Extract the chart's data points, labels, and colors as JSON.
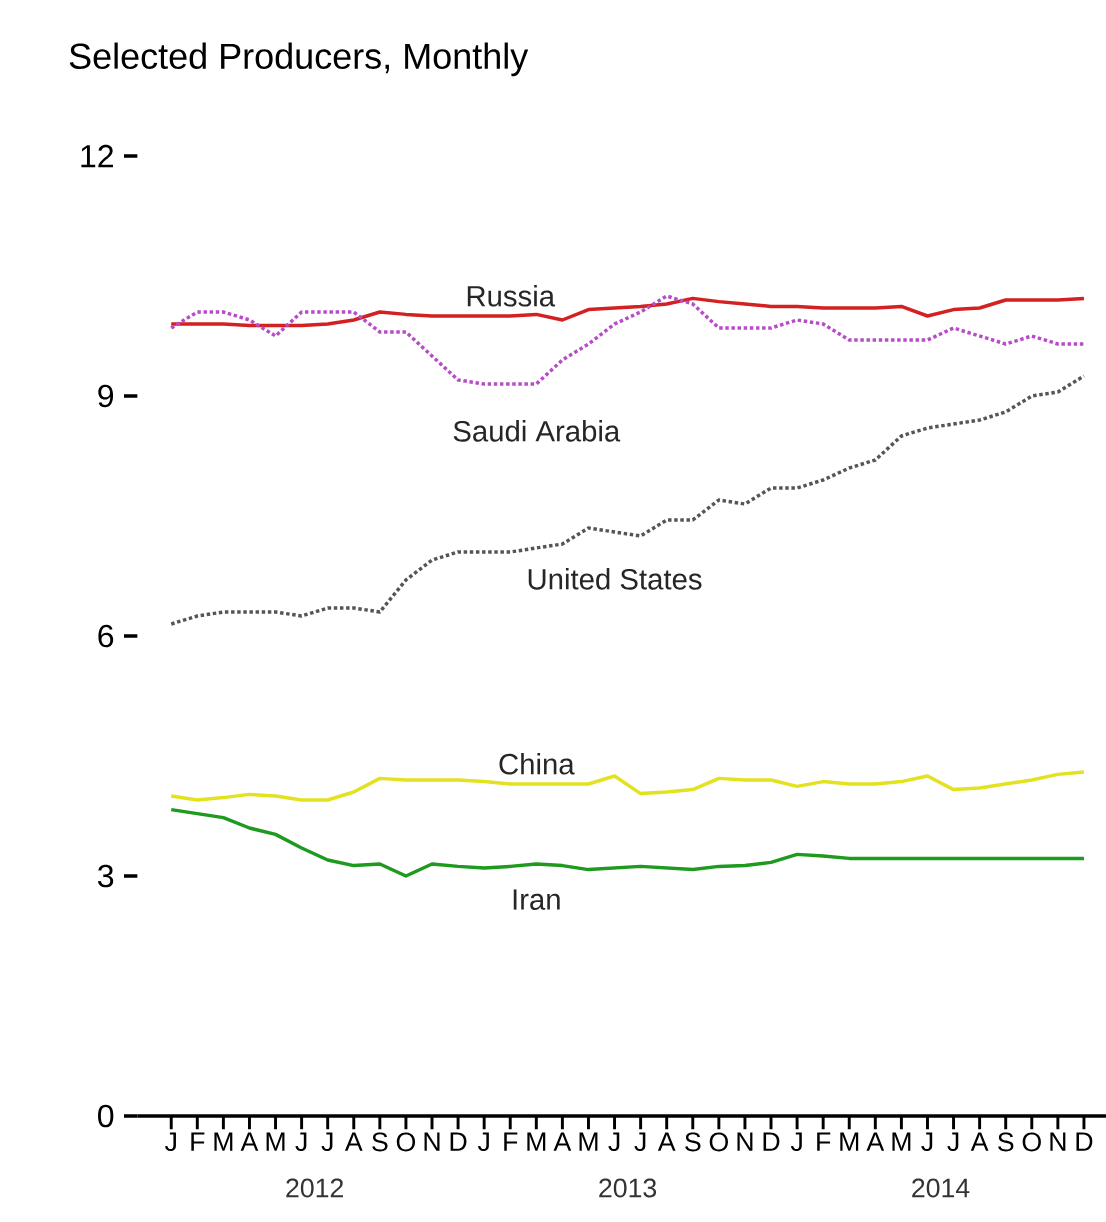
{
  "chart_data": {
    "type": "line",
    "title": "Selected Producers, Monthly",
    "categories": [
      "J",
      "F",
      "M",
      "A",
      "M",
      "J",
      "J",
      "A",
      "S",
      "O",
      "N",
      "D",
      "J",
      "F",
      "M",
      "A",
      "M",
      "J",
      "J",
      "A",
      "S",
      "O",
      "N",
      "D",
      "J",
      "F",
      "M",
      "A",
      "M",
      "J",
      "J",
      "A",
      "S",
      "O",
      "N",
      "D"
    ],
    "annotations": [
      "2012",
      "2013",
      "2014"
    ],
    "ylim": [
      0,
      12
    ],
    "yticks": [
      0,
      3,
      6,
      9,
      12
    ],
    "grid": false,
    "legend": false,
    "series": [
      {
        "name": "Russia",
        "color": "#d42020",
        "line_style": "solid",
        "values": [
          9.9,
          9.9,
          9.9,
          9.88,
          9.88,
          9.88,
          9.9,
          9.95,
          10.05,
          10.02,
          10.0,
          10.0,
          10.0,
          10.0,
          10.02,
          9.95,
          10.08,
          10.1,
          10.12,
          10.15,
          10.22,
          10.18,
          10.15,
          10.12,
          10.12,
          10.1,
          10.1,
          10.1,
          10.12,
          10.0,
          10.08,
          10.1,
          10.2,
          10.2,
          10.2,
          10.22
        ]
      },
      {
        "name": "Saudi Arabia",
        "color": "#b84cc8",
        "line_style": "dotted",
        "values": [
          9.85,
          10.05,
          10.05,
          9.95,
          9.75,
          10.05,
          10.05,
          10.05,
          9.8,
          9.8,
          9.5,
          9.2,
          9.15,
          9.15,
          9.15,
          9.45,
          9.65,
          9.9,
          10.05,
          10.25,
          10.15,
          9.85,
          9.85,
          9.85,
          9.95,
          9.9,
          9.7,
          9.7,
          9.7,
          9.7,
          9.85,
          9.75,
          9.65,
          9.75,
          9.65,
          9.65
        ]
      },
      {
        "name": "United States",
        "color": "#555555",
        "line_style": "dotted",
        "values": [
          6.15,
          6.25,
          6.3,
          6.3,
          6.3,
          6.25,
          6.35,
          6.35,
          6.3,
          6.7,
          6.95,
          7.05,
          7.05,
          7.05,
          7.1,
          7.15,
          7.35,
          7.3,
          7.25,
          7.45,
          7.45,
          7.7,
          7.65,
          7.85,
          7.85,
          7.95,
          8.1,
          8.2,
          8.5,
          8.6,
          8.65,
          8.7,
          8.8,
          9.0,
          9.05,
          9.25
        ]
      },
      {
        "name": "China",
        "color": "#e2e220",
        "line_style": "solid",
        "values": [
          4.0,
          3.95,
          3.98,
          4.02,
          4.0,
          3.95,
          3.95,
          4.05,
          4.22,
          4.2,
          4.2,
          4.2,
          4.18,
          4.15,
          4.15,
          4.15,
          4.15,
          4.25,
          4.03,
          4.05,
          4.08,
          4.22,
          4.2,
          4.2,
          4.12,
          4.18,
          4.15,
          4.15,
          4.18,
          4.25,
          4.08,
          4.1,
          4.15,
          4.2,
          4.27,
          4.3
        ]
      },
      {
        "name": "Iran",
        "color": "#1e9a1e",
        "line_style": "solid",
        "values": [
          3.83,
          3.78,
          3.73,
          3.6,
          3.52,
          3.35,
          3.2,
          3.13,
          3.15,
          3.0,
          3.15,
          3.12,
          3.1,
          3.12,
          3.15,
          3.13,
          3.08,
          3.1,
          3.12,
          3.1,
          3.08,
          3.12,
          3.13,
          3.17,
          3.27,
          3.25,
          3.22,
          3.22,
          3.22,
          3.22,
          3.22,
          3.22,
          3.22,
          3.22,
          3.22,
          3.22
        ]
      }
    ]
  }
}
